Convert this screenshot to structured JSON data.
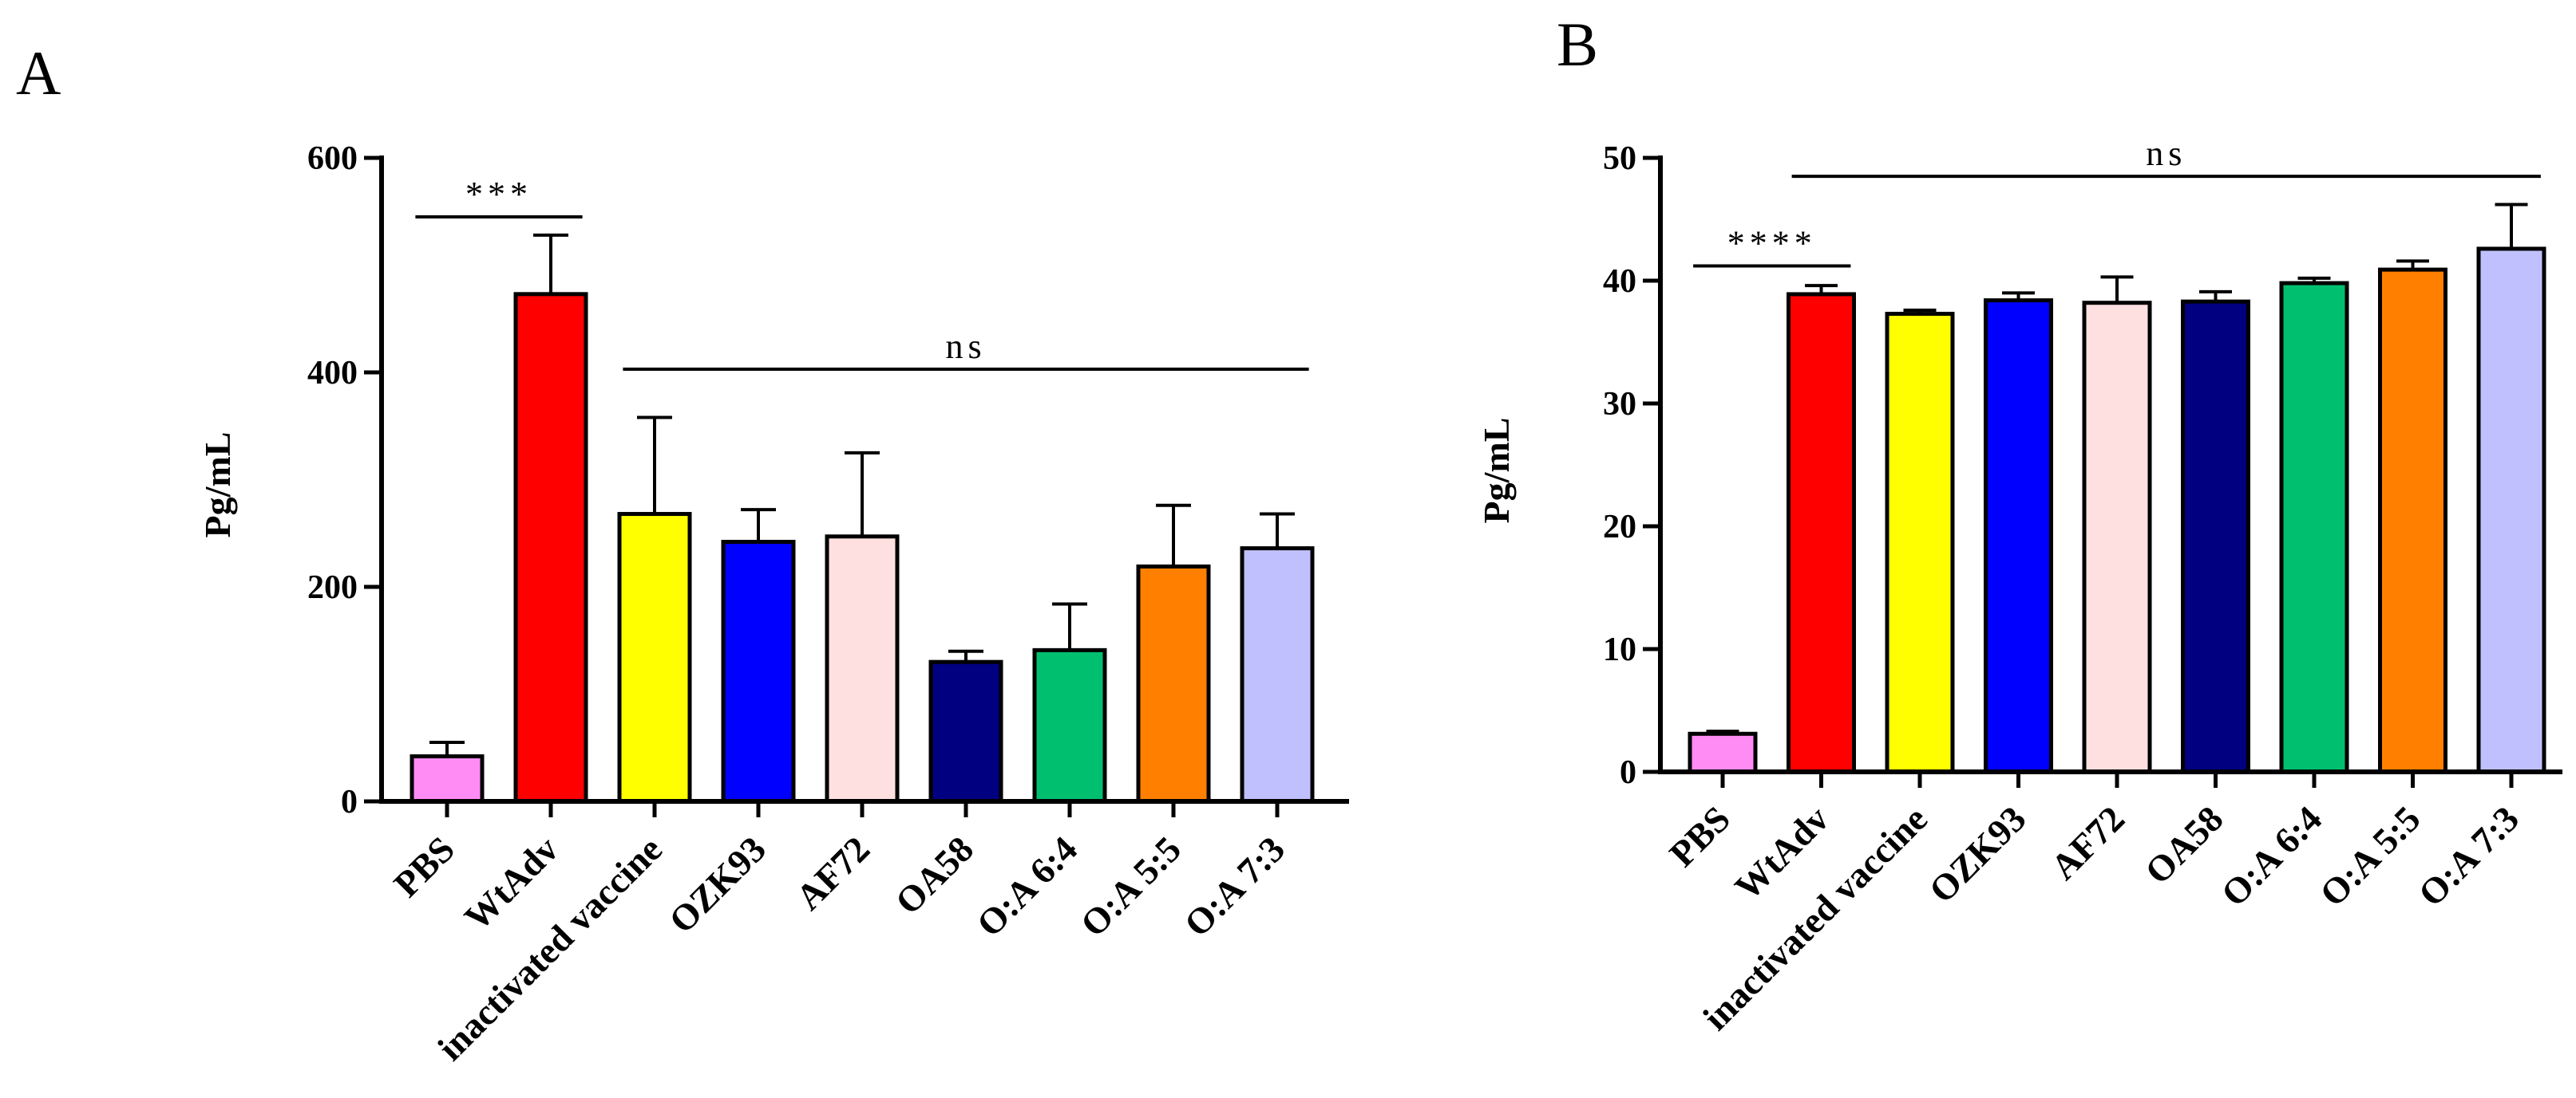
{
  "chart_data": [
    {
      "panel": "A",
      "type": "bar",
      "ylabel": "Pg/mL",
      "ylim": [
        0,
        600
      ],
      "yticks": [
        0,
        200,
        400,
        600
      ],
      "categories": [
        "PBS",
        "WtAdv",
        "inactivated vaccine",
        "OZK93",
        "AF72",
        "OA58",
        "O:A 6:4",
        "O:A 5:5",
        "O:A 7:3"
      ],
      "values": [
        42,
        473,
        268,
        242,
        247,
        130,
        141,
        219,
        236
      ],
      "errors": [
        13,
        55,
        90,
        30,
        78,
        10,
        43,
        57,
        32
      ],
      "colors": [
        "#ff8cf5",
        "#ff0000",
        "#ffff00",
        "#0000ff",
        "#ffe0e0",
        "#000080",
        "#00c070",
        "#ff8000",
        "#c0c0ff"
      ],
      "annotations": [
        {
          "text": "***",
          "from": 0,
          "to": 1,
          "y": 545
        },
        {
          "text": "ns",
          "from": 2,
          "to": 8,
          "y": 403
        }
      ]
    },
    {
      "panel": "B",
      "type": "bar",
      "ylabel": "Pg/mL",
      "ylim": [
        0,
        50
      ],
      "yticks": [
        0,
        10,
        20,
        30,
        40,
        50
      ],
      "categories": [
        "PBS",
        "WtAdv",
        "inactivated vaccine",
        "OZK93",
        "AF72",
        "OA58",
        "O:A 6:4",
        "O:A 5:5",
        "O:A 7:3"
      ],
      "values": [
        3.1,
        38.9,
        37.3,
        38.4,
        38.2,
        38.3,
        39.8,
        40.9,
        42.6
      ],
      "errors": [
        0.2,
        0.7,
        0.3,
        0.6,
        2.1,
        0.8,
        0.4,
        0.7,
        3.6
      ],
      "colors": [
        "#ff8cf5",
        "#ff0000",
        "#ffff00",
        "#0000ff",
        "#ffe0e0",
        "#000080",
        "#00c070",
        "#ff8000",
        "#c0c0ff"
      ],
      "annotations": [
        {
          "text": "****",
          "from": 0,
          "to": 1,
          "y": 41.2
        },
        {
          "text": "ns",
          "from": 1,
          "to": 8,
          "y": 48.5
        }
      ]
    }
  ]
}
